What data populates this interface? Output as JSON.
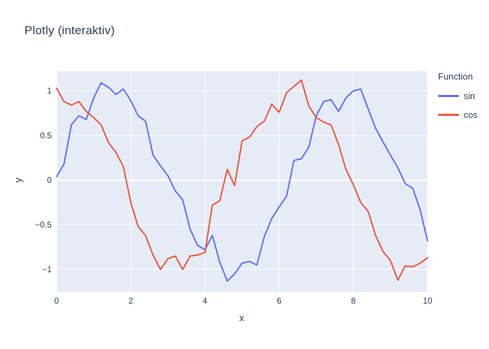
{
  "chart_data": {
    "type": "line",
    "title": "Plotly (interaktiv)",
    "xlabel": "x",
    "ylabel": "y",
    "legend_title": "Function",
    "legend_position": "right-top",
    "grid": true,
    "plot_bgcolor": "#e5ecf6",
    "grid_color": "#ffffff",
    "font_color": "#2a3f5f",
    "xlim": [
      0,
      10
    ],
    "ylim": [
      -1.25,
      1.22
    ],
    "xticks": [
      {
        "v": 0,
        "label": "0"
      },
      {
        "v": 2,
        "label": "2"
      },
      {
        "v": 4,
        "label": "4"
      },
      {
        "v": 6,
        "label": "6"
      },
      {
        "v": 8,
        "label": "8"
      },
      {
        "v": 10,
        "label": "10"
      }
    ],
    "yticks": [
      {
        "v": 1,
        "label": "1"
      },
      {
        "v": 0.5,
        "label": "0.5"
      },
      {
        "v": 0,
        "label": "0"
      },
      {
        "v": -0.5,
        "label": "−0.5"
      },
      {
        "v": -1,
        "label": "−1"
      }
    ],
    "x": [
      0,
      0.2,
      0.4,
      0.6,
      0.8,
      1,
      1.2,
      1.4,
      1.6,
      1.8,
      2,
      2.2,
      2.4,
      2.6,
      2.8,
      3,
      3.2,
      3.4,
      3.6,
      3.8,
      4,
      4.2,
      4.4,
      4.6,
      4.8,
      5,
      5.2,
      5.4,
      5.6,
      5.8,
      6,
      6.2,
      6.4,
      6.6,
      6.8,
      7,
      7.2,
      7.4,
      7.6,
      7.8,
      8,
      8.2,
      8.4,
      8.6,
      8.8,
      9,
      9.2,
      9.4,
      9.6,
      9.8,
      10
    ],
    "series": [
      {
        "name": "sin",
        "color": "#636efa",
        "values": [
          0.04,
          0.18,
          0.62,
          0.72,
          0.68,
          0.92,
          1.09,
          1.04,
          0.96,
          1.02,
          0.89,
          0.72,
          0.66,
          0.28,
          0.16,
          0.05,
          -0.12,
          -0.22,
          -0.55,
          -0.73,
          -0.78,
          -0.62,
          -0.92,
          -1.13,
          -1.05,
          -0.93,
          -0.91,
          -0.95,
          -0.63,
          -0.43,
          -0.3,
          -0.18,
          0.22,
          0.24,
          0.37,
          0.72,
          0.88,
          0.9,
          0.77,
          0.92,
          1.0,
          1.02,
          0.8,
          0.58,
          0.43,
          0.28,
          0.14,
          -0.04,
          -0.09,
          -0.33,
          -0.68
        ]
      },
      {
        "name": "cos",
        "color": "#ef553b",
        "values": [
          1.03,
          0.88,
          0.84,
          0.88,
          0.77,
          0.7,
          0.62,
          0.42,
          0.31,
          0.15,
          -0.25,
          -0.52,
          -0.62,
          -0.84,
          -1.0,
          -0.88,
          -0.85,
          -1.0,
          -0.85,
          -0.84,
          -0.81,
          -0.28,
          -0.23,
          0.12,
          -0.06,
          0.44,
          0.48,
          0.6,
          0.66,
          0.85,
          0.76,
          0.98,
          1.05,
          1.12,
          0.83,
          0.7,
          0.65,
          0.62,
          0.4,
          0.12,
          -0.05,
          -0.25,
          -0.35,
          -0.62,
          -0.8,
          -0.9,
          -1.12,
          -0.96,
          -0.97,
          -0.93,
          -0.87
        ]
      }
    ]
  }
}
